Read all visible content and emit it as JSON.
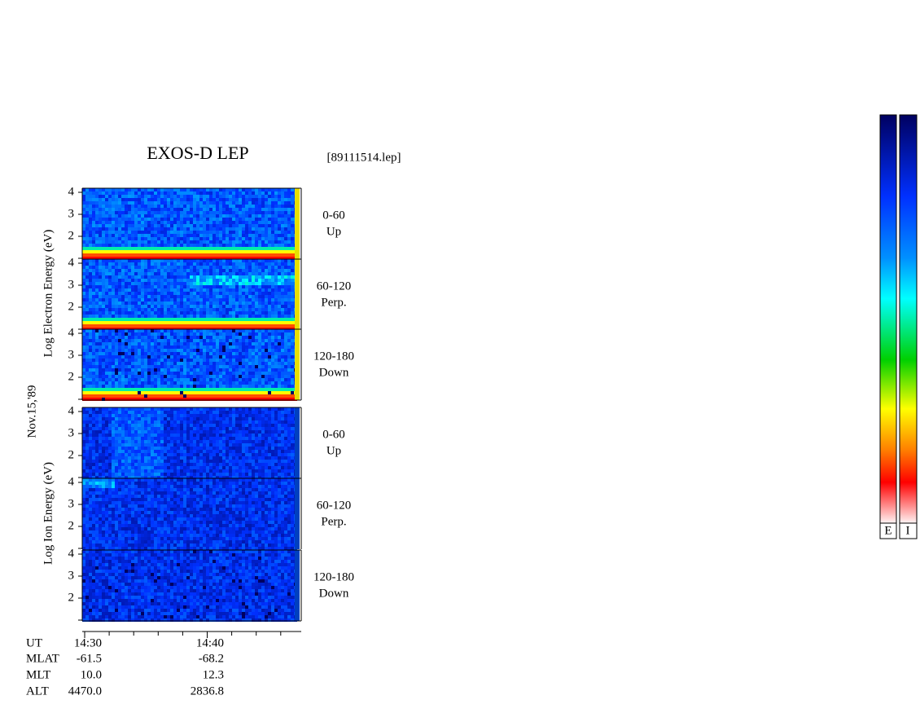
{
  "header": {
    "title": "EXOS-D LEP",
    "file": "[89111514.lep]",
    "date": "Nov.15,'89"
  },
  "energy_ticks": [
    4,
    3,
    2
  ],
  "electron": {
    "axis_label": "Log Electron Energy (eV)",
    "panels": [
      {
        "range": "0-60",
        "direction": "Up"
      },
      {
        "range": "60-120",
        "direction": "Perp."
      },
      {
        "range": "120-180",
        "direction": "Down"
      }
    ]
  },
  "ion": {
    "axis_label": "Log Ion Energy (eV)",
    "panels": [
      {
        "range": "0-60",
        "direction": "Up"
      },
      {
        "range": "60-120",
        "direction": "Perp."
      },
      {
        "range": "120-180",
        "direction": "Down"
      }
    ]
  },
  "orbit": {
    "rows": [
      [
        "UT",
        "14:30",
        "14:40"
      ],
      [
        "MLAT",
        "-61.5",
        "-68.2"
      ],
      [
        "MLT",
        "10.0",
        "12.3"
      ],
      [
        "ALT",
        "4470.0",
        "2836.8"
      ]
    ]
  },
  "colorbars": [
    "E",
    "I"
  ]
}
